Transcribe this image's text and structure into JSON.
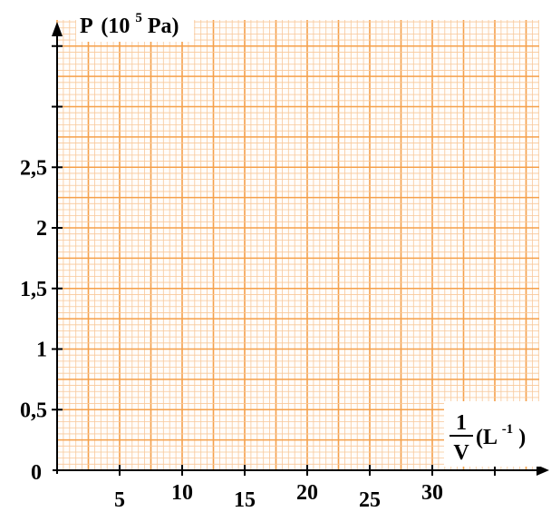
{
  "chart_data": {
    "type": "line",
    "series": [],
    "x": [],
    "xlim": [
      0,
      38
    ],
    "ylim": [
      0,
      3.5
    ],
    "grid": true,
    "grid_color": "#f5a04a",
    "minor_grid_color": "#f8c89a",
    "x_ticks": [
      "5",
      "10",
      "15",
      "20",
      "25",
      "30"
    ],
    "x_tick_values": [
      5,
      10,
      15,
      20,
      25,
      30
    ],
    "y_ticks": [
      "0",
      "0,5",
      "1",
      "1,5",
      "2",
      "2,5"
    ],
    "y_tick_values": [
      0,
      0.5,
      1,
      1.5,
      2,
      2.5
    ],
    "y_extra_tick_values": [
      3,
      3.5
    ],
    "origin_label": "0",
    "ylabel": {
      "prefix": "P",
      "open": "(10",
      "exponent": "5",
      "unit": "Pa)"
    },
    "xlabel": {
      "numerator": "1",
      "denominator": "V",
      "open": "(L",
      "exponent": "-1",
      "close": ")"
    }
  }
}
